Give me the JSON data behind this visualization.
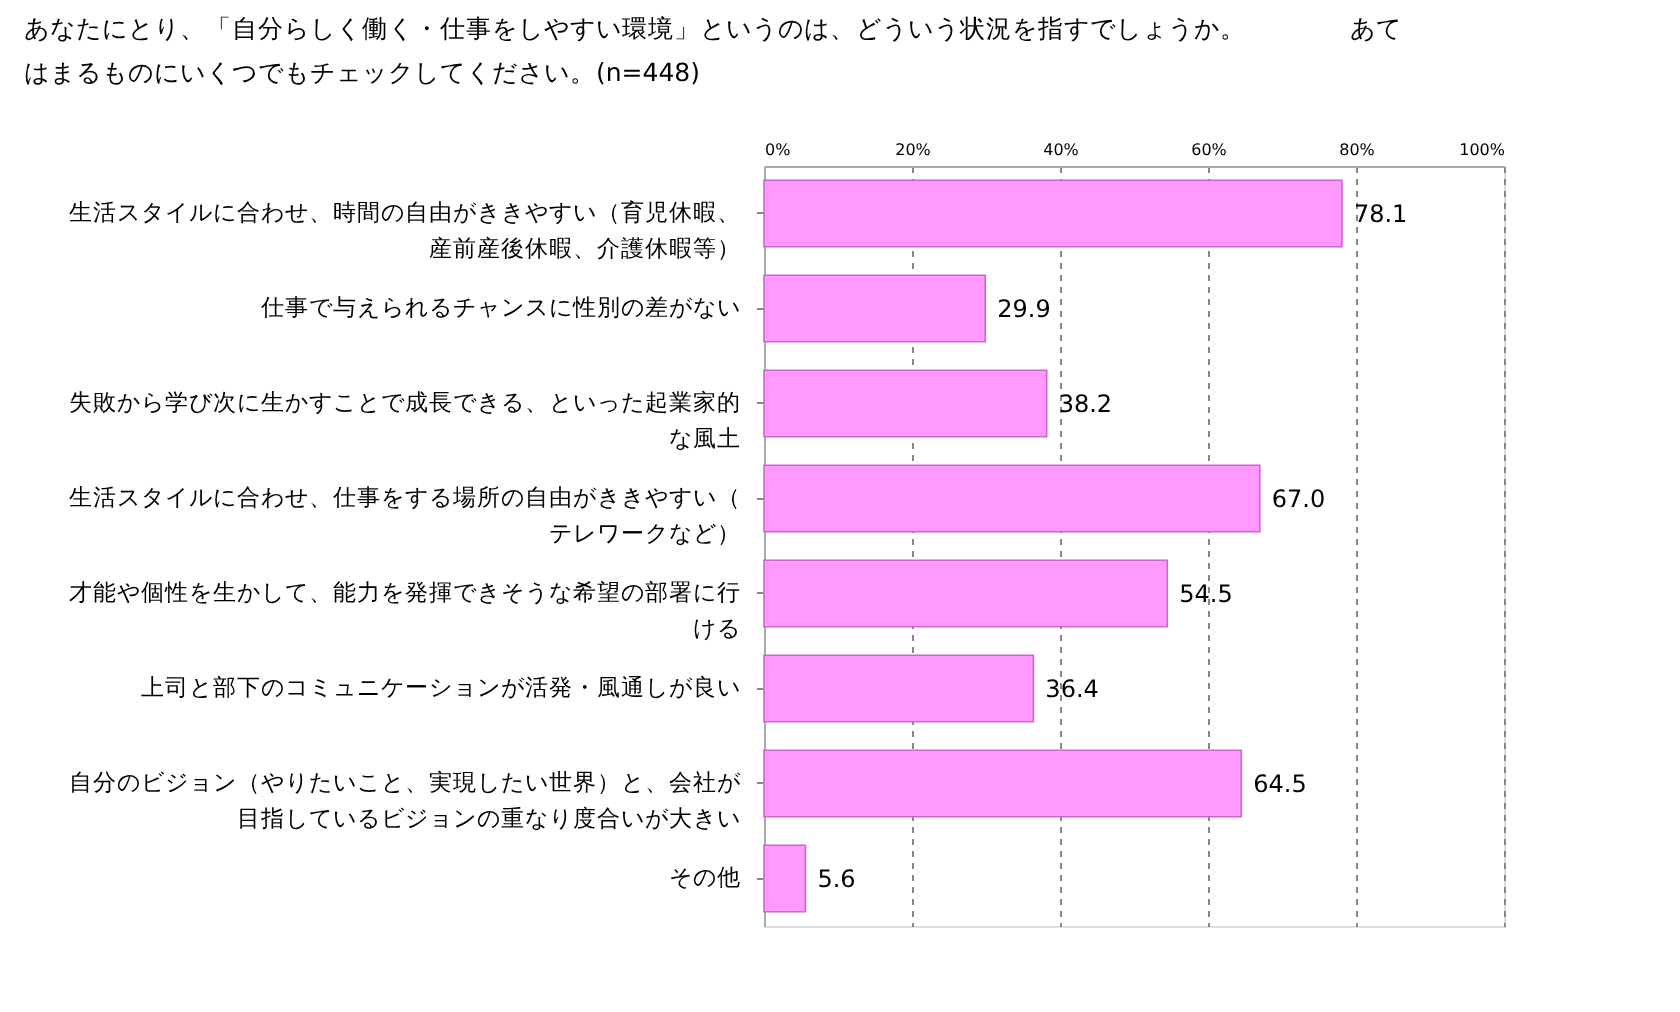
{
  "chart_data": {
    "type": "bar",
    "orientation": "horizontal",
    "title": "あなたにとり、「自分らしく働く・仕事をしやすい環境」というのは、どういう状況を指すでしょうか。　　　　あてはまるものにいくつでもチェックしてください。(n=448)",
    "categories": [
      "生活スタイルに合わせ、時間の自由がききやすい（育児休暇、産前産後休暇、介護休暇等）",
      "仕事で与えられるチャンスに性別の差がない",
      "失敗から学び次に生かすことで成長できる、といった起業家的な風土",
      "生活スタイルに合わせ、仕事をする場所の自由がききやすい（テレワークなど）",
      "才能や個性を生かして、能力を発揮できそうな希望の部署に行ける",
      "上司と部下のコミュニケーションが活発・風通しが良い",
      "自分のビジョン（やりたいこと、実現したい世界）と、会社が目指しているビジョンの重なり度合いが大きい",
      "その他"
    ],
    "values": [
      78.1,
      29.9,
      38.2,
      67.0,
      54.5,
      36.4,
      64.5,
      5.6
    ],
    "color": "#ff99ff",
    "xlim": [
      0,
      100
    ],
    "xticks": [
      {
        "value": 0,
        "label": "0%"
      },
      {
        "value": 20,
        "label": "20%"
      },
      {
        "value": 40,
        "label": "40%"
      },
      {
        "value": 60,
        "label": "60%"
      },
      {
        "value": 80,
        "label": "80%"
      },
      {
        "value": 100,
        "label": "100%"
      }
    ],
    "grid": "x",
    "value_labels": [
      "78.1",
      "29.9",
      "38.2",
      "67.0",
      "54.5",
      "36.4",
      "64.5",
      "5.6"
    ]
  }
}
